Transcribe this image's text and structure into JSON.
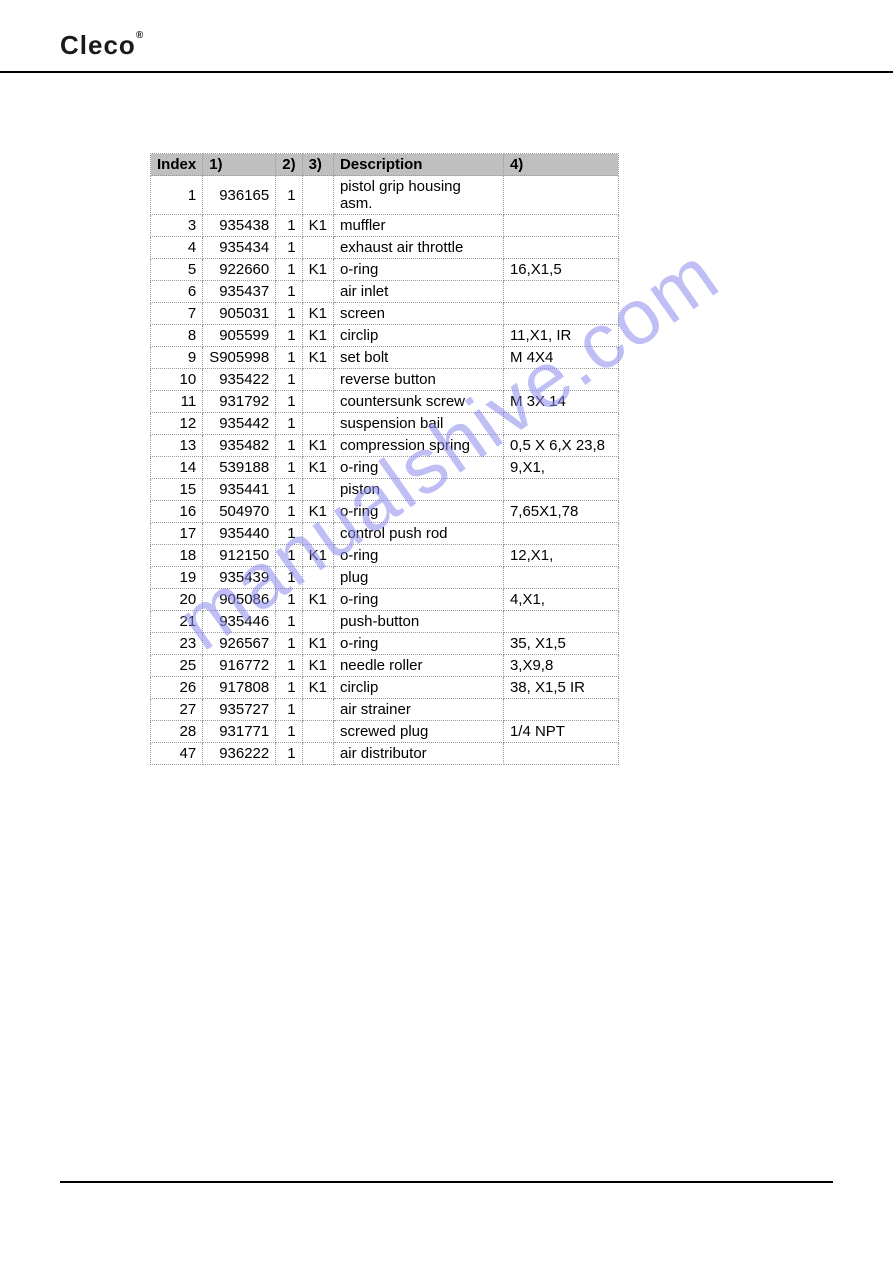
{
  "header": {
    "brand": "Cleco"
  },
  "watermark_text": "manualshive.com",
  "table": {
    "headers": {
      "index": "Index",
      "c1": "1)",
      "c2": "2)",
      "c3": "3)",
      "desc": "Description",
      "c4": "4)"
    },
    "rows": [
      {
        "index": "1",
        "c1": "936165",
        "c2": "1",
        "c3": "",
        "desc": "pistol grip housing asm.",
        "c4": ""
      },
      {
        "index": "3",
        "c1": "935438",
        "c2": "1",
        "c3": "K1",
        "desc": "muffler",
        "c4": ""
      },
      {
        "index": "4",
        "c1": "935434",
        "c2": "1",
        "c3": "",
        "desc": "exhaust air throttle",
        "c4": ""
      },
      {
        "index": "5",
        "c1": "922660",
        "c2": "1",
        "c3": "K1",
        "desc": "o-ring",
        "c4": "16,X1,5"
      },
      {
        "index": "6",
        "c1": "935437",
        "c2": "1",
        "c3": "",
        "desc": "air inlet",
        "c4": ""
      },
      {
        "index": "7",
        "c1": "905031",
        "c2": "1",
        "c3": "K1",
        "desc": "screen",
        "c4": ""
      },
      {
        "index": "8",
        "c1": "905599",
        "c2": "1",
        "c3": "K1",
        "desc": "circlip",
        "c4": "11,X1, IR"
      },
      {
        "index": "9",
        "c1": "S905998",
        "c2": "1",
        "c3": "K1",
        "desc": "set bolt",
        "c4": "M 4X4"
      },
      {
        "index": "10",
        "c1": "935422",
        "c2": "1",
        "c3": "",
        "desc": "reverse button",
        "c4": ""
      },
      {
        "index": "11",
        "c1": "931792",
        "c2": "1",
        "c3": "",
        "desc": "countersunk screw",
        "c4": "M 3X 14"
      },
      {
        "index": "12",
        "c1": "935442",
        "c2": "1",
        "c3": "",
        "desc": "suspension bail",
        "c4": ""
      },
      {
        "index": "13",
        "c1": "935482",
        "c2": "1",
        "c3": "K1",
        "desc": "compression spring",
        "c4": "0,5 X 6,X 23,8"
      },
      {
        "index": "14",
        "c1": "539188",
        "c2": "1",
        "c3": "K1",
        "desc": "o-ring",
        "c4": "9,X1,"
      },
      {
        "index": "15",
        "c1": "935441",
        "c2": "1",
        "c3": "",
        "desc": "piston",
        "c4": ""
      },
      {
        "index": "16",
        "c1": "504970",
        "c2": "1",
        "c3": "K1",
        "desc": "o-ring",
        "c4": "7,65X1,78"
      },
      {
        "index": "17",
        "c1": "935440",
        "c2": "1",
        "c3": "",
        "desc": "control push rod",
        "c4": ""
      },
      {
        "index": "18",
        "c1": "912150",
        "c2": "1",
        "c3": "K1",
        "desc": "o-ring",
        "c4": "12,X1,"
      },
      {
        "index": "19",
        "c1": "935439",
        "c2": "1",
        "c3": "",
        "desc": "plug",
        "c4": ""
      },
      {
        "index": "20",
        "c1": "905086",
        "c2": "1",
        "c3": "K1",
        "desc": "o-ring",
        "c4": "4,X1,"
      },
      {
        "index": "21",
        "c1": "935446",
        "c2": "1",
        "c3": "",
        "desc": "push-button",
        "c4": ""
      },
      {
        "index": "23",
        "c1": "926567",
        "c2": "1",
        "c3": "K1",
        "desc": "o-ring",
        "c4": "35,  X1,5"
      },
      {
        "index": "25",
        "c1": "916772",
        "c2": "1",
        "c3": "K1",
        "desc": "needle roller",
        "c4": "3,X9,8"
      },
      {
        "index": "26",
        "c1": "917808",
        "c2": "1",
        "c3": "K1",
        "desc": "circlip",
        "c4": " 38,  X1,5 IR"
      },
      {
        "index": "27",
        "c1": "935727",
        "c2": "1",
        "c3": "",
        "desc": "air strainer",
        "c4": ""
      },
      {
        "index": "28",
        "c1": "931771",
        "c2": "1",
        "c3": "",
        "desc": "screwed plug",
        "c4": "1/4 NPT"
      },
      {
        "index": "47",
        "c1": "936222",
        "c2": "1",
        "c3": "",
        "desc": "air distributor",
        "c4": ""
      }
    ],
    "style": {
      "header_bg": "#bfbfbf",
      "border_color": "#999999",
      "font_size": 15,
      "text_color": "#000000"
    }
  }
}
